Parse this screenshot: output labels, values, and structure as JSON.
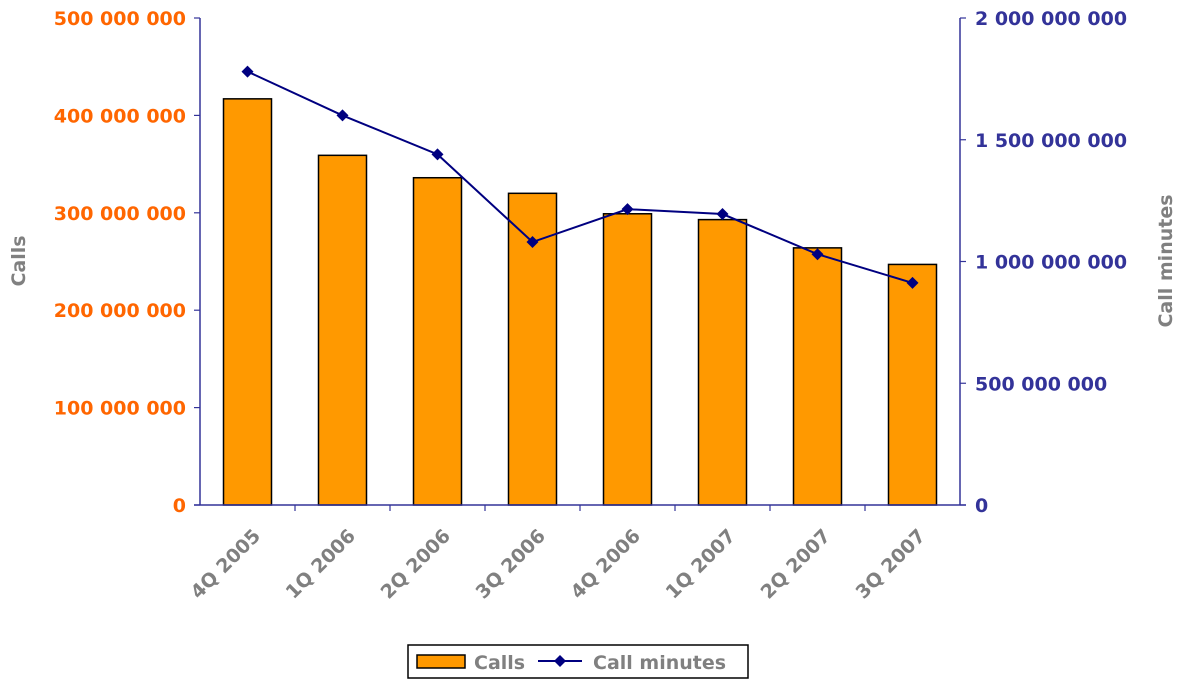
{
  "chart_data": {
    "type": "bar",
    "categories": [
      "4Q 2005",
      "1Q 2006",
      "2Q 2006",
      "3Q 2006",
      "4Q 2006",
      "1Q 2007",
      "2Q 2007",
      "3Q 2007"
    ],
    "series": [
      {
        "name": "Calls",
        "kind": "bar",
        "axis": "left",
        "color": "#FF9900",
        "values": [
          417000000,
          359000000,
          336000000,
          320000000,
          299000000,
          293000000,
          264000000,
          247000000
        ]
      },
      {
        "name": "Call minutes",
        "kind": "line",
        "axis": "right",
        "color": "#000080",
        "values": [
          1780000000,
          1600000000,
          1440000000,
          1080000000,
          1215000000,
          1195000000,
          1030000000,
          912000000
        ]
      }
    ],
    "ylabel": "Calls",
    "y2label": "Call minutes",
    "ylim": [
      0,
      500000000
    ],
    "y2lim": [
      0,
      2000000000
    ],
    "yticks": [
      "0",
      "100 000 000",
      "200 000 000",
      "300 000 000",
      "400 000 000",
      "500 000 000"
    ],
    "y2ticks": [
      "0",
      "500 000 000",
      "1 000 000 000",
      "1 500 000 000",
      "2 000 000 000"
    ],
    "left_tick_color": "#FF6600",
    "right_tick_color": "#333399",
    "grid": false,
    "legend_position": "bottom"
  }
}
